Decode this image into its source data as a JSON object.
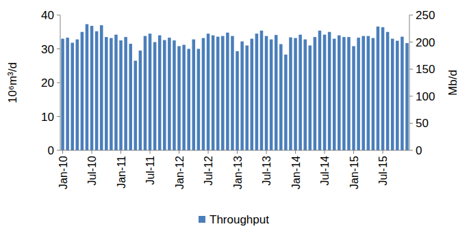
{
  "chart_data": {
    "type": "bar",
    "y_label": "10⁶m³/d",
    "y2_label": "Mb/d",
    "categories": [
      "Jan-10",
      null,
      null,
      null,
      null,
      null,
      "Jul-10",
      null,
      null,
      null,
      null,
      null,
      "Jan-11",
      null,
      null,
      null,
      null,
      null,
      "Jul-11",
      null,
      null,
      null,
      null,
      null,
      "Jan-12",
      null,
      null,
      null,
      null,
      null,
      "Jul-12",
      null,
      null,
      null,
      null,
      null,
      "Jan-13",
      null,
      null,
      null,
      null,
      null,
      "Jul-13",
      null,
      null,
      null,
      null,
      null,
      "Jan-14",
      null,
      null,
      null,
      null,
      null,
      "Jul-14",
      null,
      null,
      null,
      null,
      null,
      "Jan-15",
      null,
      null,
      null,
      null,
      null,
      "Jul-15",
      null,
      null,
      null,
      null,
      null
    ],
    "series": [
      {
        "name": "Throughput",
        "color": "#4a7ebb",
        "values": [
          33,
          33.3,
          31.8,
          32.8,
          35,
          37.3,
          36.8,
          35.2,
          37,
          33.5,
          33.2,
          34.2,
          32.5,
          33.5,
          31.5,
          26.5,
          29.5,
          33.8,
          34.5,
          32,
          34,
          32.6,
          33.3,
          32.5,
          30.8,
          31.2,
          30,
          32.8,
          30,
          33.2,
          34.5,
          34,
          33.6,
          33.8,
          34.8,
          33.8,
          29.3,
          32.2,
          31,
          33,
          34.5,
          35.4,
          33.8,
          32.8,
          34.1,
          31.4,
          28.3,
          33.4,
          33.2,
          34.2,
          32.8,
          31,
          33.5,
          35.4,
          34.2,
          35,
          33,
          34,
          33.5,
          33.5,
          30.8,
          33.3,
          33.8,
          33.8,
          33.2,
          36.6,
          36.4,
          35,
          33,
          32.4,
          33.6,
          31.7
        ]
      }
    ],
    "ylim": [
      0,
      40
    ],
    "yticks": [
      0,
      10,
      20,
      30,
      40
    ],
    "y2lim": [
      0,
      250
    ],
    "y2ticks": [
      0,
      50,
      100,
      150,
      200,
      250
    ],
    "grid": false,
    "legend": "bottom"
  }
}
